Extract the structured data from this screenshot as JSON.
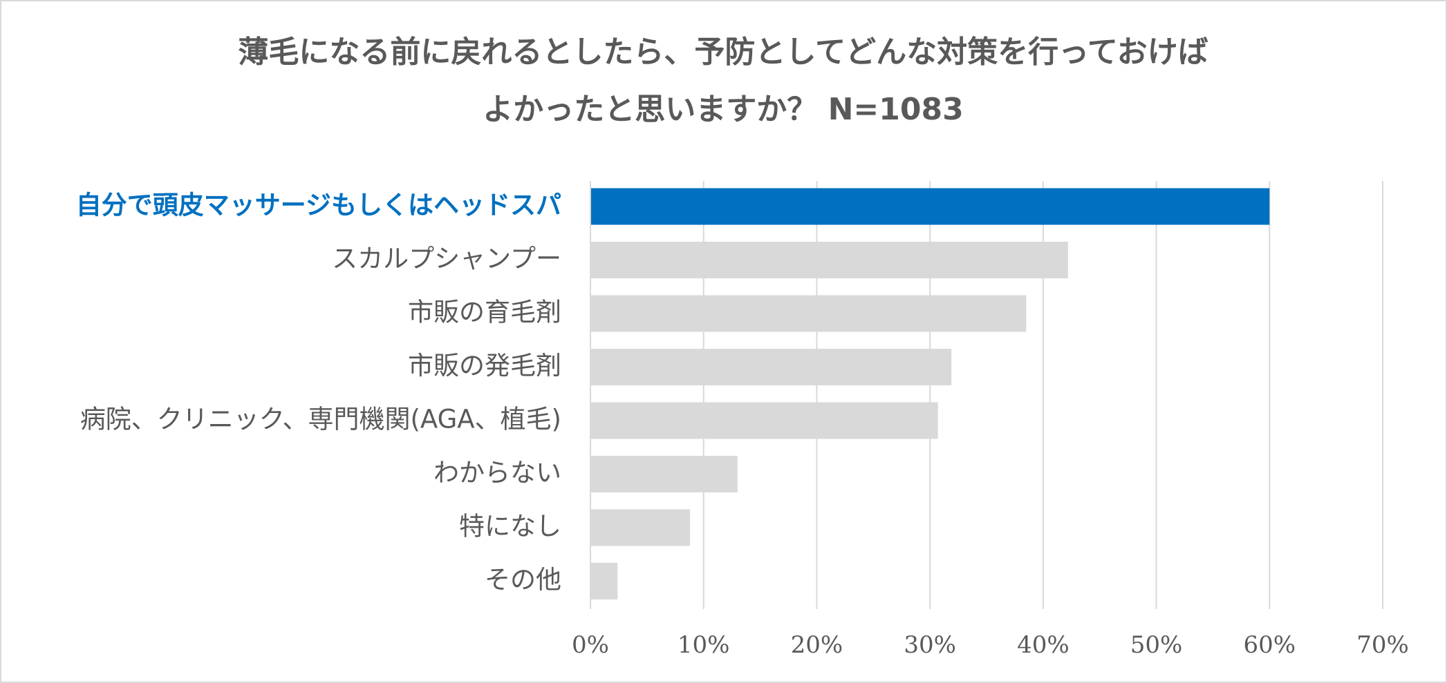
{
  "chart_data": {
    "type": "barh",
    "title": [
      "薄毛になる前に戻れるとしたら、予防としてどんな対策を行っておけば",
      "よかったと思いますか？ N=1083"
    ],
    "categories": [
      "自分で頭皮マッサージもしくはヘッドスパ",
      "スカルプシャンプー",
      "市販の育毛剤",
      "市販の発毛剤",
      "病院、クリニック、専門機関(AGA、植毛)",
      "わからない",
      "特になし",
      "その他"
    ],
    "values": [
      60.0,
      42.2,
      38.5,
      31.9,
      30.7,
      13.0,
      8.8,
      2.4
    ],
    "color": "#d9d9d9",
    "highlight": 0,
    "highlight_color": "#0070c0",
    "xlim": [
      0,
      70
    ],
    "xticks": [
      {
        "value": 0,
        "label": "0%"
      },
      {
        "value": 10,
        "label": "10%"
      },
      {
        "value": 20,
        "label": "20%"
      },
      {
        "value": 30,
        "label": "30%"
      },
      {
        "value": 40,
        "label": "40%"
      },
      {
        "value": 50,
        "label": "50%"
      },
      {
        "value": 60,
        "label": "60%"
      },
      {
        "value": 70,
        "label": "70%"
      }
    ],
    "grid": true
  }
}
